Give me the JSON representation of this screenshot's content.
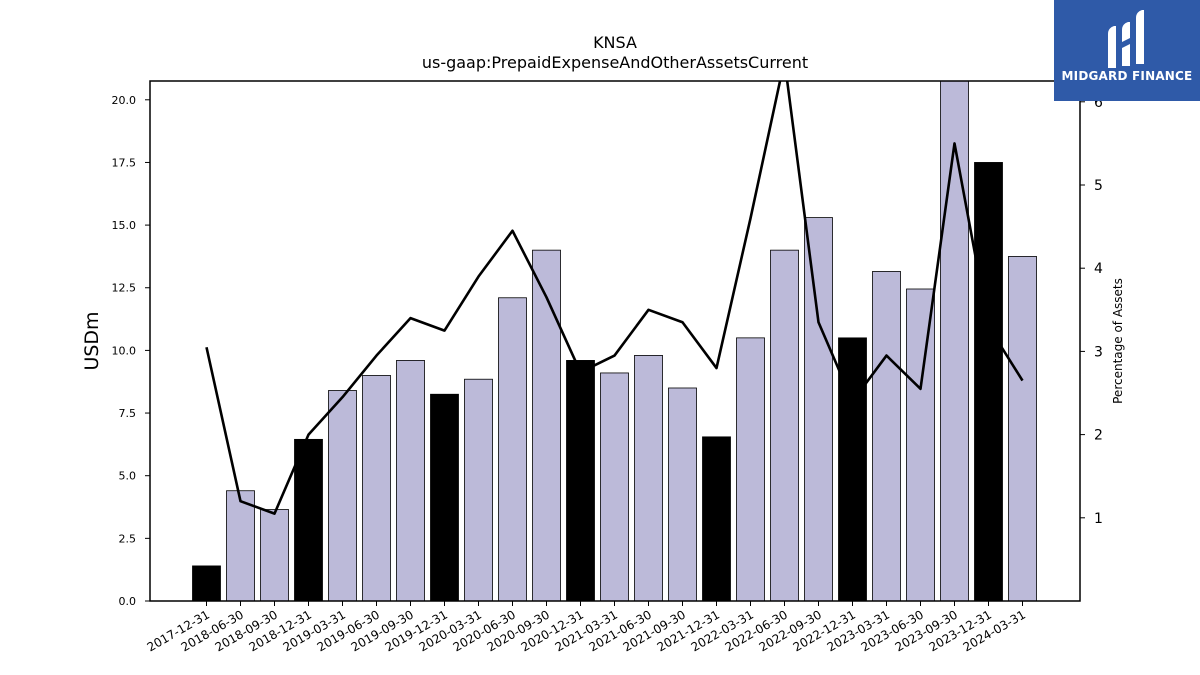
{
  "chart_data": {
    "type": "bar+line",
    "title": "KNSA",
    "subtitle": "us-gaap:PrepaidExpenseAndOtherAssetsCurrent",
    "ylabel": "USDm",
    "y2label": "Percentage of Assets",
    "ylim": [
      0,
      20.75
    ],
    "y2lim": [
      0.0,
      6.25
    ],
    "yticks": [
      "0.0",
      "2.5",
      "5.0",
      "7.5",
      "10.0",
      "12.5",
      "15.0",
      "17.5",
      "20.0"
    ],
    "y2ticks": [
      "1",
      "2",
      "3",
      "4",
      "5",
      "6"
    ],
    "categories": [
      "2017-12-31",
      "2018-06-30",
      "2018-09-30",
      "2018-12-31",
      "2019-03-31",
      "2019-06-30",
      "2019-09-30",
      "2019-12-31",
      "2020-03-31",
      "2020-06-30",
      "2020-09-30",
      "2020-12-31",
      "2021-03-31",
      "2021-06-30",
      "2021-09-30",
      "2021-12-31",
      "2022-03-31",
      "2022-06-30",
      "2022-09-30",
      "2022-12-31",
      "2023-03-31",
      "2023-06-30",
      "2023-09-30",
      "2023-12-31",
      "2024-03-31"
    ],
    "bars": [
      1.4,
      4.4,
      3.65,
      6.45,
      8.4,
      9.0,
      9.6,
      8.25,
      8.85,
      12.1,
      14.0,
      9.6,
      9.1,
      9.8,
      8.5,
      6.55,
      10.5,
      14.0,
      15.3,
      10.5,
      13.15,
      12.45,
      20.9,
      17.5,
      13.75
    ],
    "bar_kind": [
      "annual",
      "quarter",
      "quarter",
      "annual",
      "quarter",
      "quarter",
      "quarter",
      "annual",
      "quarter",
      "quarter",
      "quarter",
      "annual",
      "quarter",
      "quarter",
      "quarter",
      "annual",
      "quarter",
      "quarter",
      "quarter",
      "annual",
      "quarter",
      "quarter",
      "quarter",
      "annual",
      "quarter"
    ],
    "pct_of_assets": [
      3.05,
      1.2,
      1.05,
      2.0,
      2.45,
      2.95,
      3.4,
      3.25,
      3.9,
      4.45,
      3.65,
      2.75,
      2.95,
      3.5,
      3.35,
      2.8,
      4.6,
      6.5,
      3.35,
      2.4,
      2.95,
      2.55,
      5.5,
      3.3,
      2.65
    ],
    "colors": {
      "quarter": "#bcbad9",
      "annual": "#000000",
      "line": "#000000"
    }
  },
  "logo": {
    "text": "MIDGARD FINANCE",
    "bg": "#2f5aa8"
  }
}
